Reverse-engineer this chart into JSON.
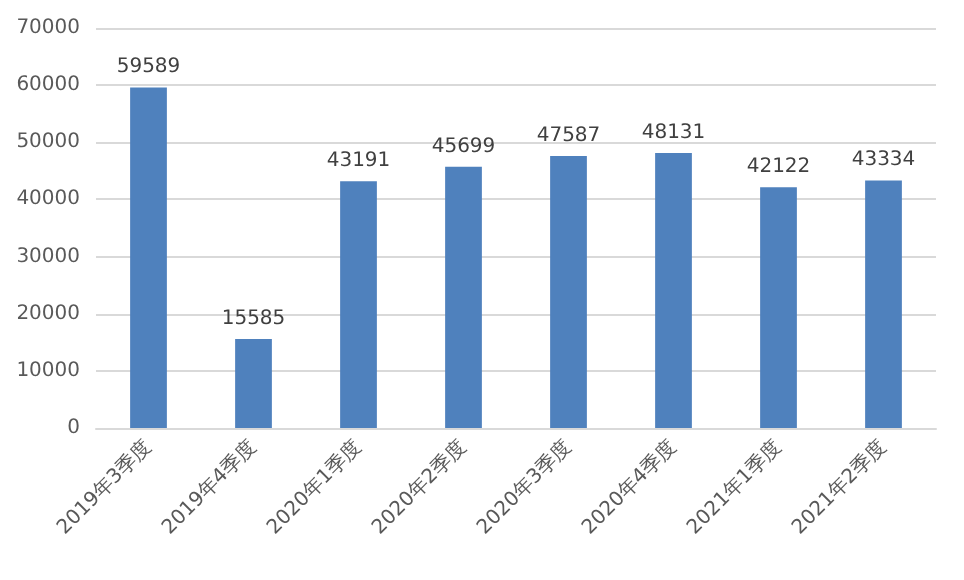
{
  "chart_data": {
    "type": "bar",
    "categories": [
      "2019年3季度",
      "2019年4季度",
      "2020年1季度",
      "2020年2季度",
      "2020年3季度",
      "2020年4季度",
      "2021年1季度",
      "2021年2季度"
    ],
    "values": [
      59589,
      15585,
      43191,
      45699,
      47587,
      48131,
      42122,
      43334
    ],
    "color": "#4f81bd",
    "ylim": [
      0,
      70000
    ],
    "yticks": [
      0,
      10000,
      20000,
      30000,
      40000,
      50000,
      60000,
      70000
    ],
    "grid": "y",
    "data_labels": true
  }
}
